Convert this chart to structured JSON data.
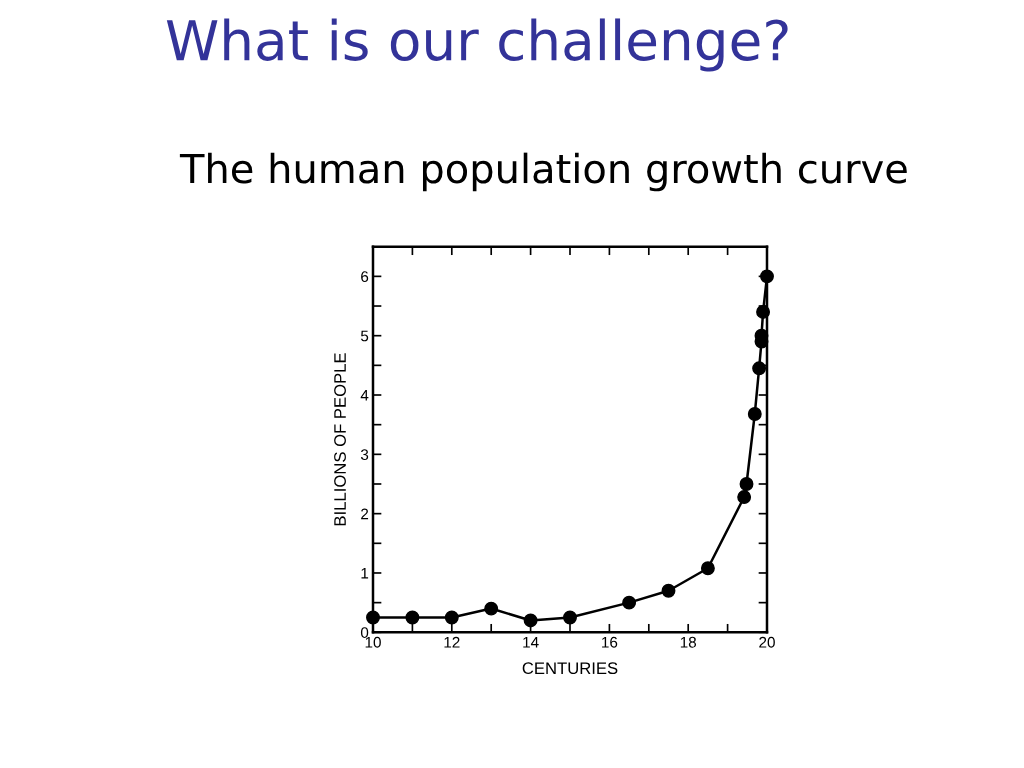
{
  "chart_data": {
    "type": "line",
    "title": "What is our challenge?",
    "subtitle": "The human population growth curve",
    "xlabel": "CENTURIES",
    "ylabel": "BILLIONS OF PEOPLE",
    "x": [
      10,
      11,
      12,
      13,
      14,
      15,
      16.5,
      17.5,
      18.5,
      19.42,
      19.48,
      19.69,
      19.8,
      19.86,
      19.86,
      19.9,
      20
    ],
    "series": [
      {
        "color": "#000000",
        "values": [
          0.25,
          0.25,
          0.25,
          0.4,
          0.2,
          0.25,
          0.5,
          0.7,
          1.08,
          2.28,
          2.5,
          3.68,
          4.45,
          4.9,
          5.0,
          5.4,
          6.0
        ]
      }
    ],
    "xlim": [
      10,
      20
    ],
    "ylim": [
      0,
      6.5
    ],
    "xticks": [
      10,
      {
        "value": 11,
        "label": null
      },
      12,
      {
        "value": 13,
        "label": null
      },
      14,
      {
        "value": 15,
        "label": null
      },
      16,
      {
        "value": 17,
        "label": null
      },
      18,
      {
        "value": 19,
        "label": null
      },
      20
    ],
    "yticks": [
      0,
      {
        "value": 0.5,
        "label": null
      },
      1,
      {
        "value": 1.5,
        "label": null
      },
      2,
      {
        "value": 2.5,
        "label": null
      },
      3,
      {
        "value": 3.5,
        "label": null
      },
      4,
      {
        "value": 4.5,
        "label": null
      },
      5,
      {
        "value": 5.5,
        "label": null
      },
      6
    ],
    "marker": "circle",
    "line_style": "solid"
  }
}
